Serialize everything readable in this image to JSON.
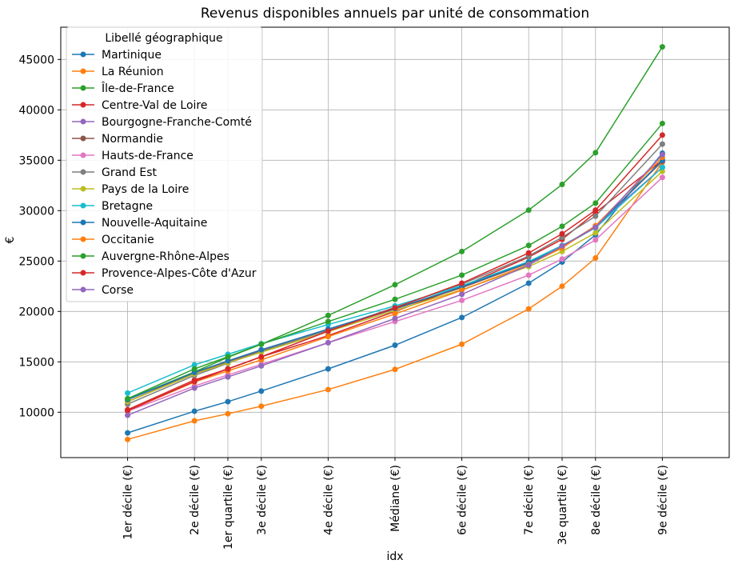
{
  "chart_data": {
    "type": "line",
    "title": "Revenus disponibles annuels par unité de consommation",
    "xlabel": "idx",
    "ylabel": "€",
    "legend_title": "Libellé géographique",
    "legend_position": "top-left",
    "grid": true,
    "ylim": [
      5500,
      48200
    ],
    "y_ticks": [
      10000,
      15000,
      20000,
      25000,
      30000,
      35000,
      40000,
      45000
    ],
    "x_positions": [
      0,
      2,
      3,
      4,
      6,
      8,
      10,
      12,
      13,
      14,
      16
    ],
    "xlim": [
      -2,
      18
    ],
    "categories": [
      "1er décile (€)",
      "2e décile (€)",
      "1er quartile (€)",
      "3e décile (€)",
      "4e décile (€)",
      "Médiane (€)",
      "6e décile (€)",
      "7e décile (€)",
      "3e quartile (€)",
      "8e décile (€)",
      "9e décile (€)"
    ],
    "series": [
      {
        "name": "Martinique",
        "color": "#1f77b4",
        "values": [
          7950,
          10100,
          11050,
          12100,
          14300,
          16650,
          19400,
          22800,
          24900,
          27600,
          35700
        ]
      },
      {
        "name": "La Réunion",
        "color": "#ff7f0e",
        "values": [
          7300,
          9150,
          9850,
          10600,
          12250,
          14250,
          16750,
          20250,
          22500,
          25300,
          34800
        ]
      },
      {
        "name": "Île-de-France",
        "color": "#2ca02c",
        "values": [
          11300,
          14000,
          15450,
          16750,
          19600,
          22650,
          25950,
          30050,
          32600,
          35750,
          46250
        ]
      },
      {
        "name": "Centre-Val de Loire",
        "color": "#d62728",
        "values": [
          10250,
          13200,
          14300,
          15500,
          17600,
          20000,
          22450,
          25400,
          27150,
          29800,
          35000
        ]
      },
      {
        "name": "Bourgogne-Franche-Comté",
        "color": "#9467bd",
        "values": [
          11050,
          13900,
          15000,
          16050,
          18150,
          20250,
          22400,
          24800,
          26400,
          28500,
          34300
        ]
      },
      {
        "name": "Normandie",
        "color": "#8c564b",
        "values": [
          11050,
          13900,
          15050,
          16150,
          18200,
          20250,
          22350,
          24800,
          26400,
          28400,
          34900
        ]
      },
      {
        "name": "Hauts-de-France",
        "color": "#e377c2",
        "values": [
          10100,
          12600,
          13700,
          14750,
          16900,
          19000,
          21100,
          23600,
          25200,
          27100,
          33300
        ]
      },
      {
        "name": "Grand Est",
        "color": "#7f7f7f",
        "values": [
          10800,
          13650,
          14850,
          16050,
          18150,
          20400,
          22700,
          25500,
          27350,
          29450,
          36600
        ]
      },
      {
        "name": "Pays de la Loire",
        "color": "#bcbd22",
        "values": [
          11050,
          13800,
          14900,
          15950,
          18000,
          20100,
          22150,
          24450,
          25950,
          27800,
          33900
        ]
      },
      {
        "name": "Bretagne",
        "color": "#17becf",
        "values": [
          11900,
          14700,
          15750,
          16800,
          18700,
          20550,
          22550,
          24950,
          26550,
          28300,
          34300
        ]
      },
      {
        "name": "Nouvelle-Aquitaine",
        "color": "#1f77b4",
        "values": [
          11250,
          13950,
          15100,
          16200,
          18250,
          20300,
          22450,
          24850,
          26400,
          28350,
          35000
        ]
      },
      {
        "name": "Occitanie",
        "color": "#ff7f0e",
        "values": [
          10150,
          13000,
          14100,
          15200,
          17500,
          19750,
          22100,
          24650,
          26300,
          28500,
          35300
        ]
      },
      {
        "name": "Auvergne-Rhône-Alpes",
        "color": "#2ca02c",
        "values": [
          11350,
          14300,
          15500,
          16750,
          19000,
          21200,
          23600,
          26550,
          28450,
          30750,
          38650
        ]
      },
      {
        "name": "Provence-Alpes-Côte d'Azur",
        "color": "#d62728",
        "values": [
          10150,
          13050,
          14300,
          15500,
          18050,
          20350,
          22800,
          25800,
          27700,
          30050,
          37500
        ]
      },
      {
        "name": "Corse",
        "color": "#9467bd",
        "values": [
          9700,
          12400,
          13500,
          14600,
          16900,
          19300,
          21700,
          24600,
          26500,
          28350,
          35550
        ]
      }
    ]
  }
}
